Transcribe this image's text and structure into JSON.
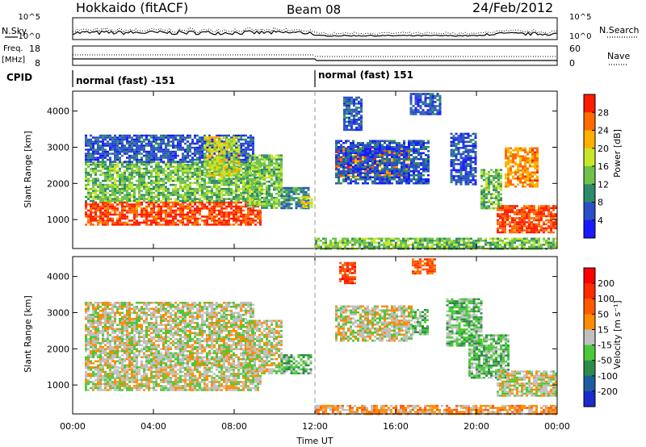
{
  "header": {
    "station": "Hokkaido (fitACF)",
    "beam": "Beam 08",
    "date": "24/Feb/2012"
  },
  "strip": {
    "nsky_label": "N.Sky",
    "nsky_ticks": [
      "10^5",
      "10^0"
    ],
    "nsearch_label": "N.Search",
    "nsearch_ticks": [
      "10^5",
      "10^0"
    ],
    "freq_label": "Freq.",
    "freq_unit": "[MHz]",
    "freq_ticks": [
      "18",
      "8"
    ],
    "nave_label": "Nave",
    "nave_ticks": [
      "60",
      "0"
    ],
    "cpid_label": "CPID",
    "cpid_segments": [
      "normal (fast) -151",
      "normal (fast) 151"
    ]
  },
  "chart_data": [
    {
      "type": "heatmap",
      "panel": "power",
      "ylabel": "Slant Range [km]",
      "yticks": [
        "1000",
        "2000",
        "3000",
        "4000"
      ],
      "ylim": [
        200,
        4550
      ],
      "xlim": [
        0,
        24
      ],
      "colorbar": {
        "label": "Power [dB]",
        "ticks": [
          "4",
          "8",
          "12",
          "16",
          "20",
          "24",
          "28"
        ],
        "colors": [
          "#1a1aff",
          "#2a50c8",
          "#2e8b6a",
          "#6ec24a",
          "#c8e628",
          "#ffb000",
          "#ff6a00",
          "#ff1a00"
        ]
      },
      "regions": [
        {
          "t0": 0.6,
          "t1": 9.3,
          "r0": 850,
          "r1": 1500,
          "level": 6.5
        },
        {
          "t0": 0.6,
          "t1": 9.3,
          "r0": 1500,
          "r1": 2600,
          "level": 3
        },
        {
          "t0": 0.6,
          "t1": 9.0,
          "r0": 2600,
          "r1": 3350,
          "level": 1
        },
        {
          "t0": 6.5,
          "t1": 8.3,
          "r0": 2200,
          "r1": 3300,
          "level": 4
        },
        {
          "t0": 8.6,
          "t1": 10.3,
          "r0": 1300,
          "r1": 2800,
          "level": 3
        },
        {
          "t0": 10.3,
          "t1": 11.7,
          "r0": 1300,
          "r1": 1900,
          "level": 2
        },
        {
          "t0": 11.3,
          "t1": 11.9,
          "r0": 1350,
          "r1": 1650,
          "level": 4
        },
        {
          "t0": 13.0,
          "t1": 16.7,
          "r0": 2200,
          "r1": 3000,
          "level": 6
        },
        {
          "t0": 13.0,
          "t1": 17.6,
          "r0": 2000,
          "r1": 3200,
          "level": 1
        },
        {
          "t0": 13.4,
          "t1": 14.3,
          "r0": 3500,
          "r1": 4400,
          "level": 1
        },
        {
          "t0": 16.7,
          "t1": 18.2,
          "r0": 3900,
          "r1": 4500,
          "level": 1
        },
        {
          "t0": 18.7,
          "t1": 20.0,
          "r0": 2000,
          "r1": 3400,
          "level": 1
        },
        {
          "t0": 20.2,
          "t1": 21.2,
          "r0": 1300,
          "r1": 2400,
          "level": 3
        },
        {
          "t0": 21.0,
          "t1": 24.0,
          "r0": 650,
          "r1": 1400,
          "level": 6.5
        },
        {
          "t0": 21.4,
          "t1": 23.0,
          "r0": 1900,
          "r1": 3000,
          "level": 5.5
        },
        {
          "t0": 12.0,
          "t1": 24.0,
          "r0": 220,
          "r1": 500,
          "level": 3
        }
      ]
    },
    {
      "type": "heatmap",
      "panel": "velocity",
      "ylabel": "Slant Range [km]",
      "yticks": [
        "1000",
        "2000",
        "3000",
        "4000"
      ],
      "ylim": [
        200,
        4550
      ],
      "xlim": [
        0,
        24
      ],
      "xlabel": "Time UT",
      "xticks": [
        "00:00",
        "04:00",
        "08:00",
        "12:00",
        "16:00",
        "20:00",
        "00:00"
      ],
      "colorbar": {
        "label": "Velocity [m s⁻¹]",
        "ticks": [
          "200",
          "100",
          "50",
          "15",
          "-15",
          "-50",
          "-100",
          "-200"
        ],
        "colors": [
          "#1a2ccc",
          "#1e5ea0",
          "#2e8b4a",
          "#4cc83a",
          "#c0c0c0",
          "#ff8c00",
          "#ff5a00",
          "#ff2a00",
          "#ff0000"
        ]
      },
      "regions": [
        {
          "t0": 0.6,
          "t1": 9.3,
          "r0": 850,
          "r1": 1500,
          "level": 4
        },
        {
          "t0": 0.6,
          "t1": 9.0,
          "r0": 1500,
          "r1": 3300,
          "level": 4
        },
        {
          "t0": 8.6,
          "t1": 10.3,
          "r0": 1300,
          "r1": 2800,
          "level": 4
        },
        {
          "t0": 10.3,
          "t1": 11.8,
          "r0": 1300,
          "r1": 1850,
          "level": 3
        },
        {
          "t0": 13.0,
          "t1": 16.8,
          "r0": 2200,
          "r1": 3200,
          "level": 4
        },
        {
          "t0": 16.8,
          "t1": 17.6,
          "r0": 2400,
          "r1": 3100,
          "level": 3
        },
        {
          "t0": 18.5,
          "t1": 20.2,
          "r0": 2100,
          "r1": 3400,
          "level": 3
        },
        {
          "t0": 19.6,
          "t1": 21.6,
          "r0": 1200,
          "r1": 2400,
          "level": 3
        },
        {
          "t0": 21.0,
          "t1": 24.0,
          "r0": 700,
          "r1": 1400,
          "level": 4
        },
        {
          "t0": 13.2,
          "t1": 14.0,
          "r0": 3800,
          "r1": 4400,
          "level": 7
        },
        {
          "t0": 16.8,
          "t1": 18.0,
          "r0": 4100,
          "r1": 4500,
          "level": 6
        },
        {
          "t0": 12.0,
          "t1": 24.0,
          "r0": 220,
          "r1": 450,
          "level": 5
        }
      ]
    }
  ]
}
